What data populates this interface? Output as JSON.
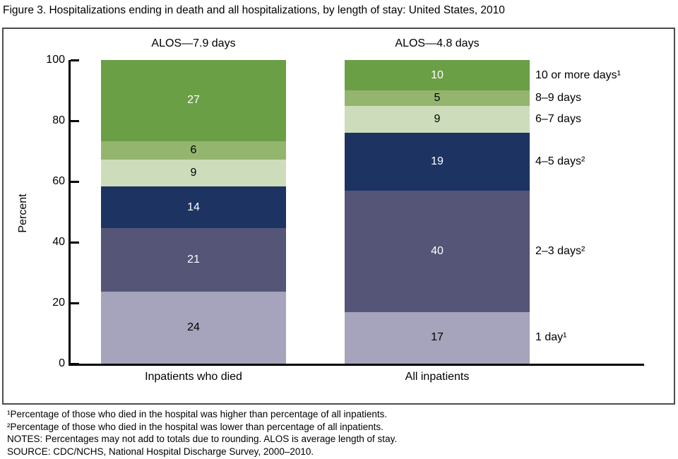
{
  "title": "Figure 3. Hospitalizations ending in death and all hospitalizations, by length of stay: United States, 2010",
  "chart_data": {
    "type": "bar",
    "stacked": true,
    "title": "Hospitalizations ending in death and all hospitalizations, by length of stay: United States, 2010",
    "ylabel": "Percent",
    "ylim": [
      0,
      100
    ],
    "yticks": [
      0,
      20,
      40,
      60,
      80,
      100
    ],
    "grid": false,
    "legend_position": "right",
    "categories": [
      "Inpatients who died",
      "All inpatients"
    ],
    "group_headers": [
      "ALOS—7.9 days",
      "ALOS—4.8 days"
    ],
    "series": [
      {
        "name": "1 day¹",
        "values": [
          24,
          17
        ],
        "color": "#a5a4bc",
        "label_color": "#000000"
      },
      {
        "name": "2–3 days²",
        "values": [
          21,
          40
        ],
        "color": "#545577",
        "label_color": "#ffffff"
      },
      {
        "name": "4–5 days²",
        "values": [
          14,
          19
        ],
        "color": "#1d3361",
        "label_color": "#ffffff"
      },
      {
        "name": "6–7 days",
        "values": [
          9,
          9
        ],
        "color": "#cdddbb",
        "label_color": "#000000"
      },
      {
        "name": "8–9 days",
        "values": [
          6,
          5
        ],
        "color": "#94b56e",
        "label_color": "#000000"
      },
      {
        "name": "10 or more days¹",
        "values": [
          27,
          10
        ],
        "color": "#6a9f45",
        "label_color": "#ffffff"
      }
    ]
  },
  "footnotes": [
    "¹Percentage of those who died in the hospital was higher than percentage of all inpatients.",
    "²Percentage of those who died in the hospital was lower than percentage of all inpatients.",
    "NOTES: Percentages may not add to totals due to rounding. ALOS is average length of stay.",
    "SOURCE: CDC/NCHS, National Hospital Discharge Survey, 2000–2010."
  ]
}
